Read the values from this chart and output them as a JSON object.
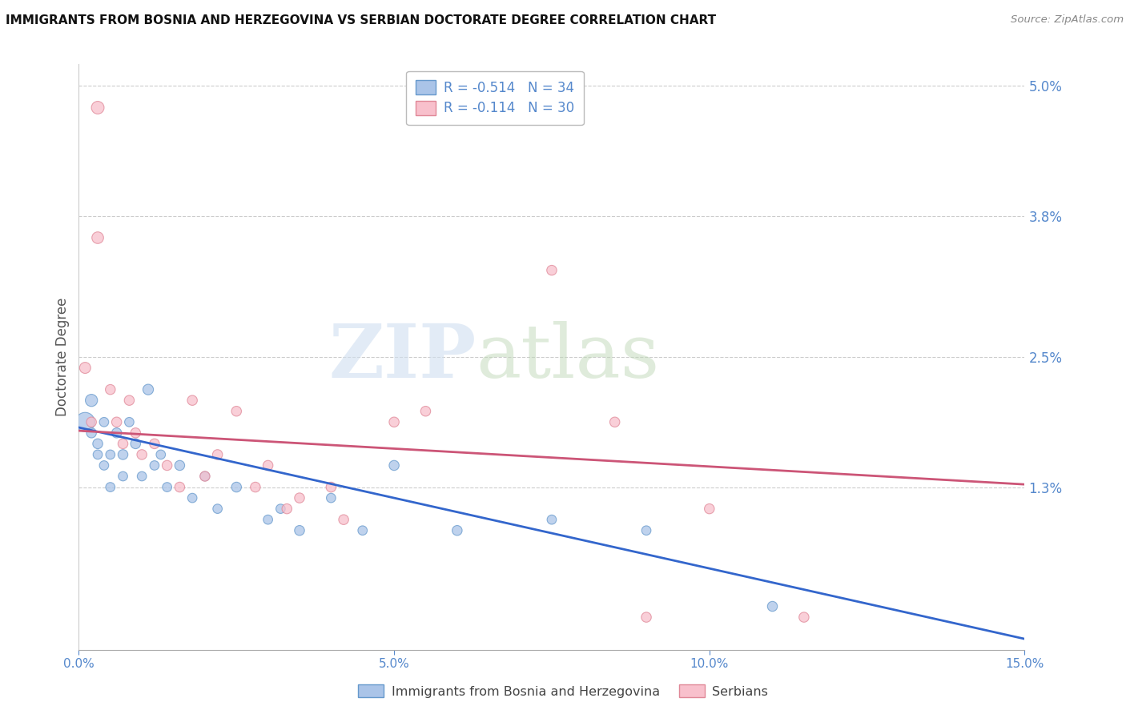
{
  "title": "IMMIGRANTS FROM BOSNIA AND HERZEGOVINA VS SERBIAN DOCTORATE DEGREE CORRELATION CHART",
  "source": "Source: ZipAtlas.com",
  "ylabel": "Doctorate Degree",
  "xlim": [
    0.0,
    0.15
  ],
  "ylim": [
    -0.002,
    0.052
  ],
  "yticks": [
    0.013,
    0.025,
    0.038,
    0.05
  ],
  "ytick_labels": [
    "1.3%",
    "2.5%",
    "3.8%",
    "5.0%"
  ],
  "xticks": [
    0.0,
    0.05,
    0.1,
    0.15
  ],
  "xtick_labels": [
    "0.0%",
    "5.0%",
    "10.0%",
    "15.0%"
  ],
  "watermark_zip": "ZIP",
  "watermark_atlas": "atlas",
  "blue_label": "Immigrants from Bosnia and Herzegovina",
  "pink_label": "Serbians",
  "blue_R": -0.514,
  "blue_N": 34,
  "pink_R": -0.114,
  "pink_N": 30,
  "blue_fill": "#aac4e8",
  "blue_edge": "#6699cc",
  "pink_fill": "#f8c0cc",
  "pink_edge": "#e08898",
  "blue_line_color": "#3366cc",
  "pink_line_color": "#cc5577",
  "bg_color": "#ffffff",
  "grid_color": "#cccccc",
  "tick_color": "#5588cc",
  "blue_line_intercept": 0.0185,
  "blue_line_slope": -0.13,
  "pink_line_intercept": 0.0182,
  "pink_line_slope": -0.033,
  "blue_x": [
    0.001,
    0.002,
    0.002,
    0.003,
    0.003,
    0.004,
    0.004,
    0.005,
    0.005,
    0.006,
    0.007,
    0.007,
    0.008,
    0.009,
    0.01,
    0.011,
    0.012,
    0.013,
    0.014,
    0.016,
    0.018,
    0.02,
    0.022,
    0.025,
    0.03,
    0.032,
    0.035,
    0.04,
    0.045,
    0.05,
    0.06,
    0.075,
    0.09,
    0.11
  ],
  "blue_y": [
    0.019,
    0.021,
    0.018,
    0.017,
    0.016,
    0.019,
    0.015,
    0.016,
    0.013,
    0.018,
    0.016,
    0.014,
    0.019,
    0.017,
    0.014,
    0.022,
    0.015,
    0.016,
    0.013,
    0.015,
    0.012,
    0.014,
    0.011,
    0.013,
    0.01,
    0.011,
    0.009,
    0.012,
    0.009,
    0.015,
    0.009,
    0.01,
    0.009,
    0.002
  ],
  "blue_sizes": [
    300,
    120,
    80,
    80,
    70,
    70,
    70,
    70,
    70,
    80,
    80,
    70,
    70,
    80,
    70,
    90,
    70,
    70,
    70,
    80,
    70,
    70,
    70,
    80,
    70,
    70,
    80,
    70,
    70,
    80,
    80,
    70,
    70,
    80
  ],
  "pink_x": [
    0.001,
    0.002,
    0.003,
    0.003,
    0.005,
    0.006,
    0.007,
    0.008,
    0.009,
    0.01,
    0.012,
    0.014,
    0.016,
    0.018,
    0.02,
    0.022,
    0.025,
    0.028,
    0.03,
    0.033,
    0.035,
    0.04,
    0.042,
    0.05,
    0.055,
    0.075,
    0.085,
    0.09,
    0.1,
    0.115
  ],
  "pink_y": [
    0.024,
    0.019,
    0.048,
    0.036,
    0.022,
    0.019,
    0.017,
    0.021,
    0.018,
    0.016,
    0.017,
    0.015,
    0.013,
    0.021,
    0.014,
    0.016,
    0.02,
    0.013,
    0.015,
    0.011,
    0.012,
    0.013,
    0.01,
    0.019,
    0.02,
    0.033,
    0.019,
    0.001,
    0.011,
    0.001
  ],
  "pink_sizes": [
    100,
    80,
    130,
    110,
    80,
    80,
    80,
    80,
    80,
    80,
    80,
    80,
    80,
    80,
    80,
    80,
    80,
    80,
    80,
    80,
    80,
    80,
    80,
    80,
    80,
    80,
    80,
    80,
    80,
    80
  ]
}
